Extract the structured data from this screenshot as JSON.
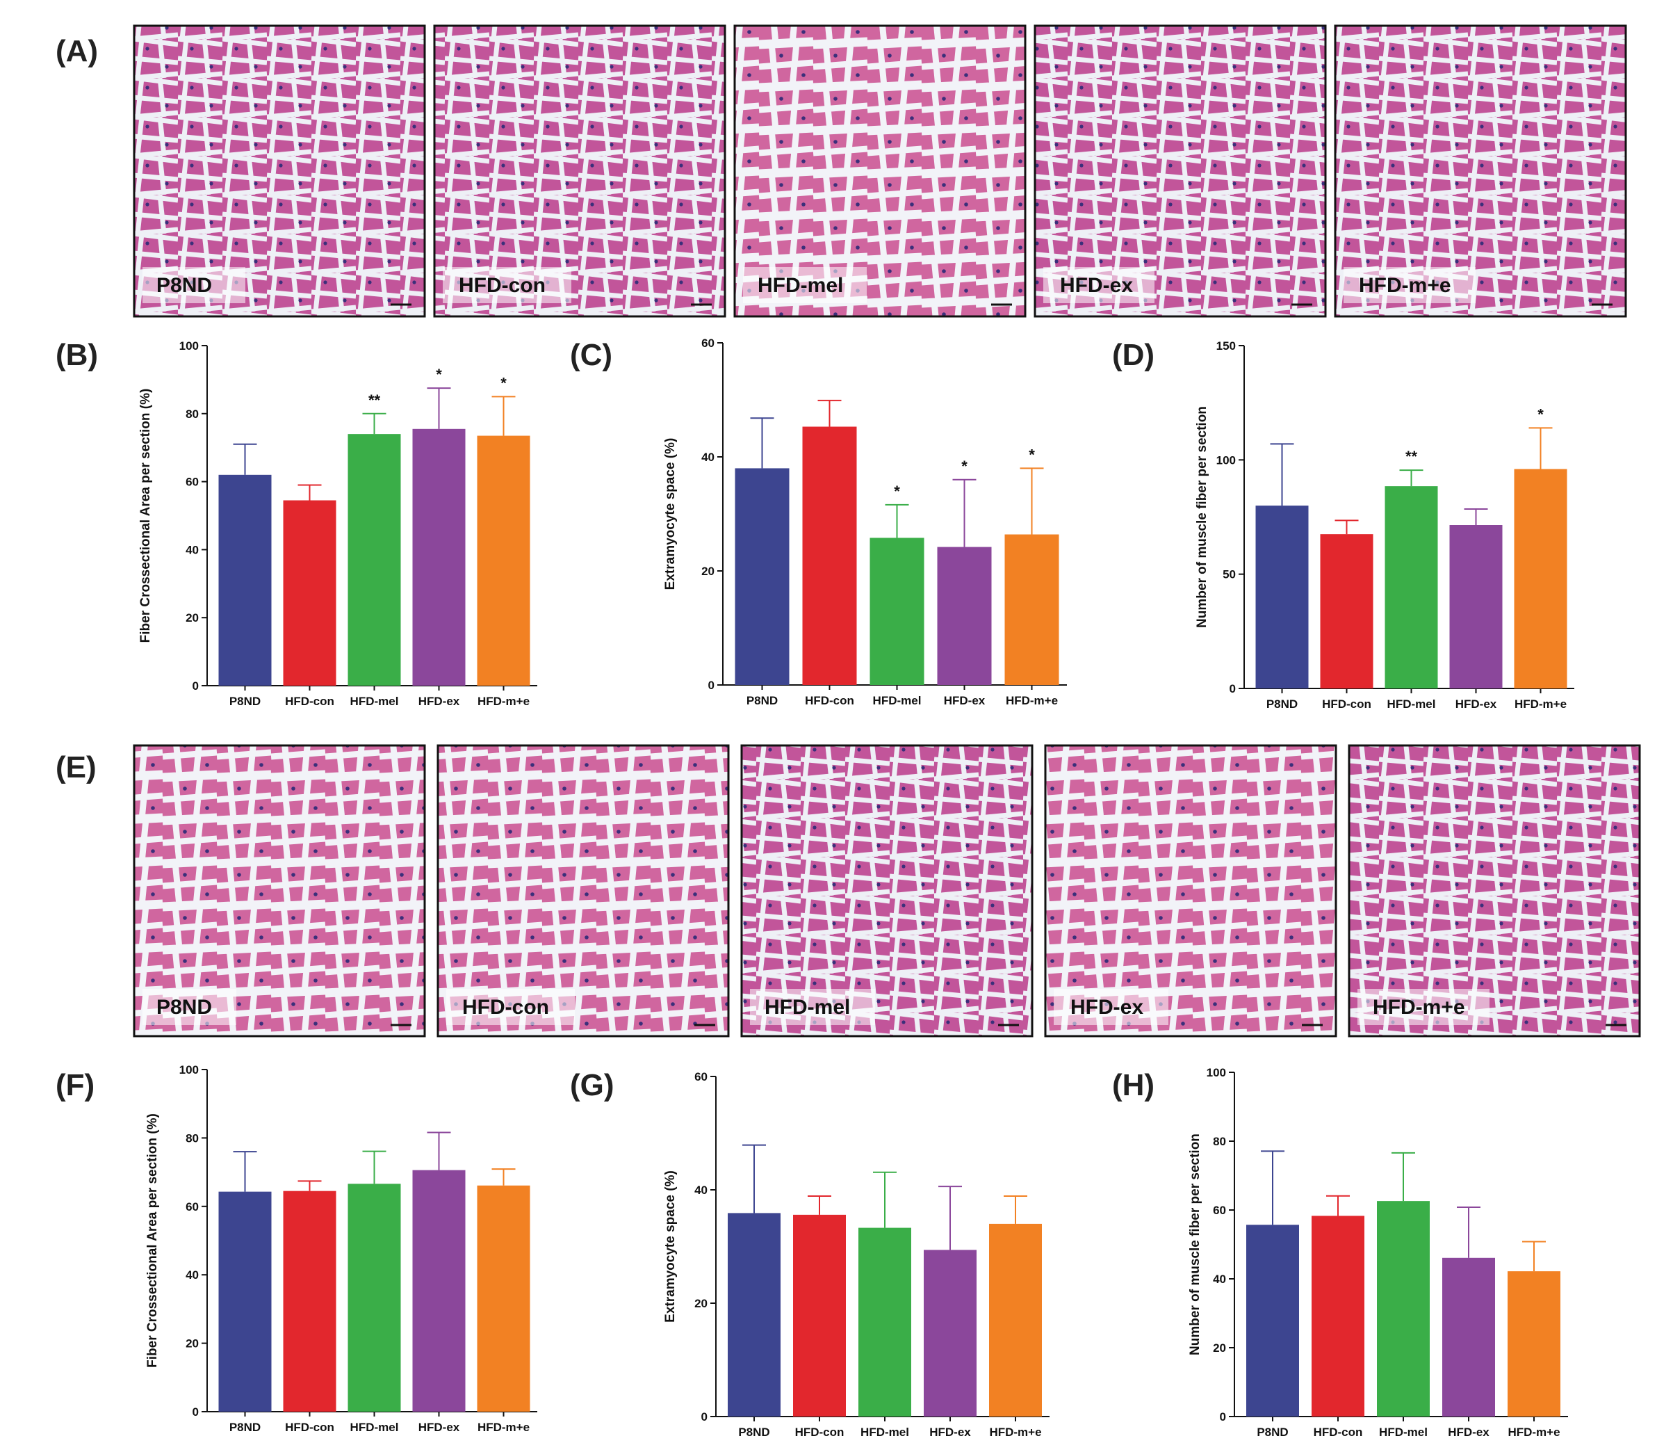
{
  "colors": {
    "P8ND": "#3d4590",
    "HFD-con": "#e2272d",
    "HFD-mel": "#3aae48",
    "HFD-ex": "#8b479b",
    "HFD-m+e": "#f28123"
  },
  "panel_rows": [
    {
      "label": "(A)",
      "images": [
        {
          "label": "P8ND"
        },
        {
          "label": "HFD-con"
        },
        {
          "label": "HFD-mel"
        },
        {
          "label": "HFD-ex"
        },
        {
          "label": "HFD-m+e"
        }
      ]
    },
    {
      "label": "(E)",
      "images": [
        {
          "label": "P8ND"
        },
        {
          "label": "HFD-con"
        },
        {
          "label": "HFD-mel"
        },
        {
          "label": "HFD-ex"
        },
        {
          "label": "HFD-m+e"
        }
      ]
    }
  ],
  "chart_data": [
    {
      "panel": "(B)",
      "type": "bar",
      "ylabel": "Fiber Crossectional Area per section (%)",
      "ylim": [
        0,
        100
      ],
      "yticks": [
        0,
        20,
        40,
        60,
        80,
        100
      ],
      "categories": [
        "P8ND",
        "HFD-con",
        "HFD-mel",
        "HFD-ex",
        "HFD-m+e"
      ],
      "values": [
        62,
        54.5,
        74,
        75.5,
        73.5
      ],
      "errors": [
        9,
        4.5,
        6,
        12,
        11.5
      ],
      "significance": [
        "",
        "",
        "**",
        "*",
        "*"
      ]
    },
    {
      "panel": "(C)",
      "type": "bar",
      "ylabel": "Extramyocyte space (%)",
      "ylim": [
        0,
        60
      ],
      "yticks": [
        0,
        20,
        40,
        60
      ],
      "categories": [
        "P8ND",
        "HFD-con",
        "HFD-mel",
        "HFD-ex",
        "HFD-m+e"
      ],
      "values": [
        38,
        45.3,
        25.8,
        24.2,
        26.4
      ],
      "errors": [
        8.8,
        4.6,
        5.8,
        11.8,
        11.6
      ],
      "significance": [
        "",
        "",
        "*",
        "*",
        "*"
      ]
    },
    {
      "panel": "(D)",
      "type": "bar",
      "ylabel": "Number of muscle fiber per section",
      "ylim": [
        0,
        150
      ],
      "yticks": [
        0,
        50,
        100,
        150
      ],
      "categories": [
        "P8ND",
        "HFD-con",
        "HFD-mel",
        "HFD-ex",
        "HFD-m+e"
      ],
      "values": [
        80,
        67.5,
        88.5,
        71.5,
        96
      ],
      "errors": [
        27,
        6,
        7,
        7,
        18
      ],
      "significance": [
        "",
        "",
        "**",
        "",
        "*"
      ]
    },
    {
      "panel": "(F)",
      "type": "bar",
      "ylabel": "Fiber Crossectional Area per section (%)",
      "ylim": [
        0,
        100
      ],
      "yticks": [
        0,
        20,
        40,
        60,
        80,
        100
      ],
      "categories": [
        "P8ND",
        "HFD-con",
        "HFD-mel",
        "HFD-ex",
        "HFD-m+e"
      ],
      "values": [
        64.3,
        64.5,
        66.6,
        70.6,
        66.1
      ],
      "errors": [
        11.7,
        2.9,
        9.5,
        11,
        4.8
      ],
      "significance": [
        "",
        "",
        "",
        "",
        ""
      ]
    },
    {
      "panel": "(G)",
      "type": "bar",
      "ylabel": "Extramyocyte space (%)",
      "ylim": [
        0,
        60
      ],
      "yticks": [
        0,
        20,
        40,
        60
      ],
      "categories": [
        "P8ND",
        "HFD-con",
        "HFD-mel",
        "HFD-ex",
        "HFD-m+e"
      ],
      "values": [
        35.9,
        35.6,
        33.3,
        29.4,
        34
      ],
      "errors": [
        12,
        3.3,
        9.8,
        11.2,
        4.9
      ],
      "significance": [
        "",
        "",
        "",
        "",
        ""
      ]
    },
    {
      "panel": "(H)",
      "type": "bar",
      "ylabel": "Number of muscle fiber per section",
      "ylim": [
        0,
        100
      ],
      "yticks": [
        0,
        20,
        40,
        60,
        80,
        100
      ],
      "categories": [
        "P8ND",
        "HFD-con",
        "HFD-mel",
        "HFD-ex",
        "HFD-m+e"
      ],
      "values": [
        55.7,
        58.3,
        62.6,
        46.1,
        42.2
      ],
      "errors": [
        21.4,
        5.8,
        14,
        14.7,
        8.6
      ],
      "significance": [
        "",
        "",
        "",
        "",
        ""
      ]
    }
  ]
}
